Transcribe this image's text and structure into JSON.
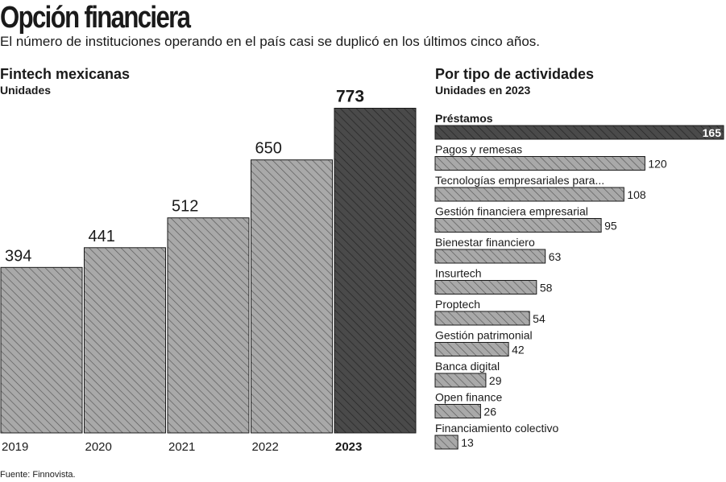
{
  "title": "Opción financiera",
  "subtitle": "El número de instituciones operando en el país casi se duplicó en los últimos cinco años.",
  "source": "Fuente: Finnovista.",
  "colors": {
    "bar_fill": "#a9a9a9",
    "bar_hatch": "#555555",
    "highlight_fill": "#4a4a4a",
    "highlight_hatch": "#222222"
  },
  "chart_data": [
    {
      "type": "bar",
      "title": "Fintech mexicanas",
      "subtitle": "Unidades",
      "categories": [
        "2019",
        "2020",
        "2021",
        "2022",
        "2023"
      ],
      "values": [
        394,
        441,
        512,
        650,
        773
      ],
      "highlight": "2023",
      "ylim": [
        0,
        800
      ]
    },
    {
      "type": "bar",
      "orientation": "horizontal",
      "title": "Por tipo de actividades",
      "subtitle": "Unidades en 2023",
      "categories": [
        "Préstamos",
        "Pagos y remesas",
        "Tecnologías empresariales para...",
        "Gestión financiera empresarial",
        "Bienestar financiero",
        "Insurtech",
        "Proptech",
        "Gestión patrimonial",
        "Banca digital",
        "Open finance",
        "Financiamiento colectivo"
      ],
      "values": [
        165,
        120,
        108,
        95,
        63,
        58,
        54,
        42,
        29,
        26,
        13
      ],
      "highlight": "Préstamos",
      "xlim": [
        0,
        165
      ]
    }
  ]
}
